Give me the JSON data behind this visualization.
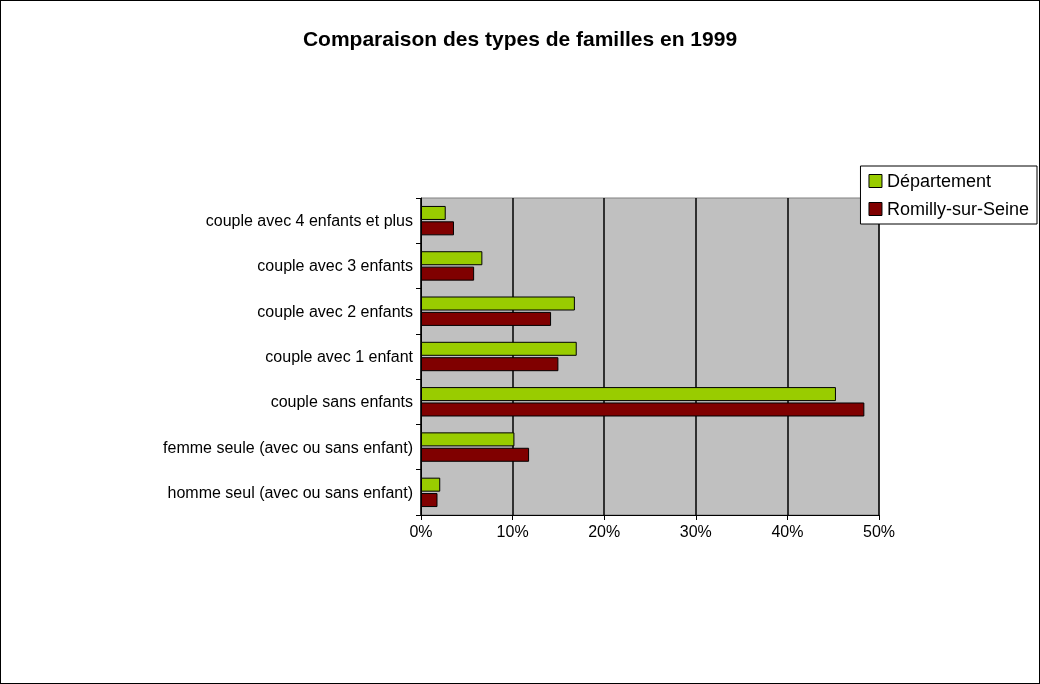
{
  "chart_data": {
    "type": "bar",
    "orientation": "horizontal",
    "title": "Comparaison des types de familles en 1999",
    "categories": [
      "couple avec 4 enfants et plus",
      "couple avec 3 enfants",
      "couple avec 2 enfants",
      "couple avec 1 enfant",
      "couple sans enfants",
      "femme seule (avec ou sans enfant)",
      "homme seul (avec ou sans enfant)"
    ],
    "series": [
      {
        "name": "Département",
        "color": "#99cc00",
        "values": [
          2.7,
          6.7,
          16.8,
          17.0,
          45.3,
          10.2,
          2.1
        ]
      },
      {
        "name": "Romilly-sur-Seine",
        "color": "#800000",
        "values": [
          3.6,
          5.8,
          14.2,
          15.0,
          48.4,
          11.8,
          1.8
        ]
      }
    ],
    "xlim": [
      0,
      50
    ],
    "xticks": [
      {
        "value": 0,
        "label": "0%"
      },
      {
        "value": 10,
        "label": "10%"
      },
      {
        "value": 20,
        "label": "20%"
      },
      {
        "value": 30,
        "label": "30%"
      },
      {
        "value": 40,
        "label": "40%"
      },
      {
        "value": 50,
        "label": "50%"
      }
    ],
    "grid": "x",
    "legend": "top right"
  }
}
